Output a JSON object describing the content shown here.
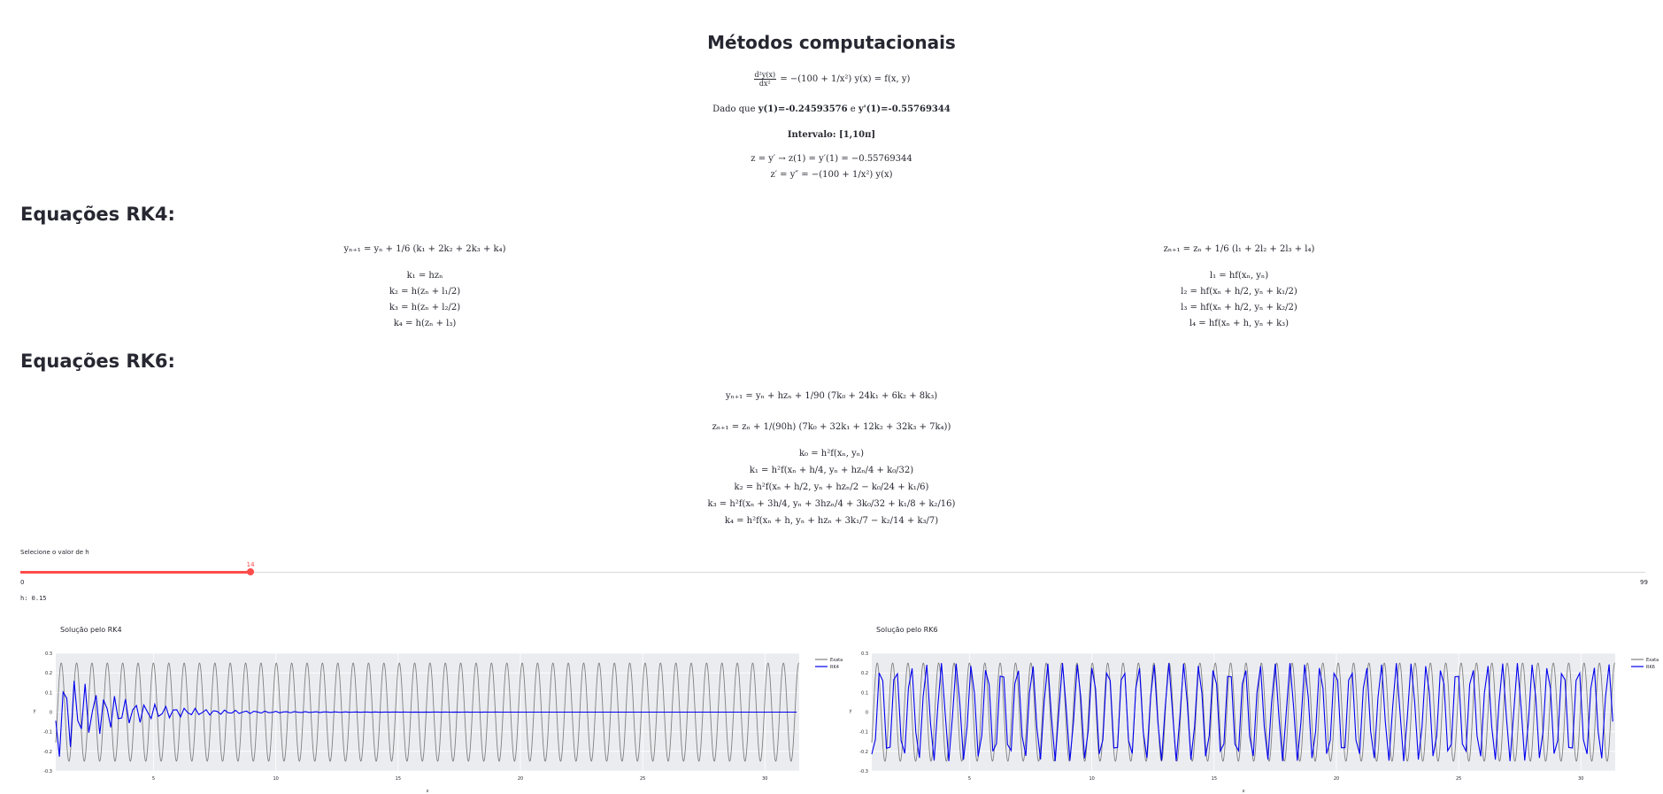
{
  "page": {
    "title": "Métodos computacionais",
    "equation_main_rhs": "= −(100 + 1/x²) y(x) = f(x, y)",
    "initial": {
      "prefix": "Dado que",
      "y_cond": "y(1)=-0.24593576",
      "joiner": "e",
      "yp_cond": "y'(1)=-0.55769344"
    },
    "interval": "Intervalo: [1,10π]",
    "subst_1": "z = y′ → z(1) = y′(1) = −0.55769344",
    "subst_2": "z′ = y″ = −(100 + 1/x²) y(x)"
  },
  "rk4": {
    "heading": "Equações RK4:",
    "y_update": "yₙ₊₁ = yₙ + 1/6 (k₁ + 2k₂ + 2k₃ + k₄)",
    "z_update": "zₙ₊₁ = zₙ + 1/6 (l₁ + 2l₂ + 2l₃ + l₄)",
    "k": [
      "k₁ = hzₙ",
      "k₂ = h(zₙ + l₁/2)",
      "k₃ = h(zₙ + l₂/2)",
      "k₄ = h(zₙ + l₃)"
    ],
    "l": [
      "l₁ = hf(xₙ, yₙ)",
      "l₂ = hf(xₙ + h/2, yₙ + k₁/2)",
      "l₃ = hf(xₙ + h/2, yₙ + k₂/2)",
      "l₄ = hf(xₙ + h, yₙ + k₃)"
    ]
  },
  "rk6": {
    "heading": "Equações RK6:",
    "y_update": "yₙ₊₁ = yₙ + hzₙ + 1/90 (7k₀ + 24k₁ + 6k₂ + 8k₃)",
    "z_update": "zₙ₊₁ = zₙ + 1/(90h) (7k₀ + 32k₁ + 12k₂ + 32k₃ + 7k₄))",
    "k": [
      "k₀ = h²f(xₙ, yₙ)",
      "k₁ = h²f(xₙ + h/4, yₙ + hzₙ/4 + k₀/32)",
      "k₂ = h²f(xₙ + h/2, yₙ + hzₙ/2 − k₀/24 + k₁/6)",
      "k₃ = h²f(xₙ + 3h/4, yₙ + 3hzₙ/4 + 3k₀/32 + k₁/8 + k₂/16)",
      "k₄ = h²f(xₙ + h, yₙ + hzₙ + 3k₁/7 − k₂/14 + k₃/7)"
    ]
  },
  "slider": {
    "label": "Selecione o valor de h",
    "value": "14",
    "min": "0",
    "max": "99",
    "value_fraction": 0.1414,
    "accent": "#ff4b4b"
  },
  "h_readout": "h: 0.15",
  "chart_data": [
    {
      "type": "line",
      "title": "Solução pelo RK4",
      "xlabel": "x",
      "ylabel": "y",
      "xlim": [
        1,
        31.4
      ],
      "ylim": [
        -0.3,
        0.3
      ],
      "xticks": [
        "5",
        "10",
        "15",
        "20",
        "25",
        "30"
      ],
      "yticks": [
        "-0.3",
        "-0.2",
        "-0.1",
        "0",
        "0.1",
        "0.2",
        "0.3"
      ],
      "legend_position": "right",
      "series": [
        {
          "name": "Exata",
          "color": "#808080",
          "kind": "exact",
          "amplitude": 0.25,
          "omega": 10.0
        },
        {
          "name": "RK4",
          "color": "#0000ee",
          "kind": "rk4",
          "amplitude": 0.25,
          "decay": 0.45,
          "step": 0.15
        }
      ]
    },
    {
      "type": "line",
      "title": "Solução pelo RK6",
      "xlabel": "x",
      "ylabel": "y",
      "xlim": [
        1,
        31.4
      ],
      "ylim": [
        -0.3,
        0.3
      ],
      "xticks": [
        "5",
        "10",
        "15",
        "20",
        "25",
        "30"
      ],
      "yticks": [
        "-0.3",
        "-0.2",
        "-0.1",
        "0",
        "0.1",
        "0.2",
        "0.3"
      ],
      "legend_position": "right",
      "series": [
        {
          "name": "Exata",
          "color": "#808080",
          "kind": "exact",
          "amplitude": 0.25,
          "omega": 10.0
        },
        {
          "name": "RK6",
          "color": "#0000ee",
          "kind": "rk6",
          "amplitude": 0.25,
          "step": 0.15
        }
      ]
    }
  ]
}
